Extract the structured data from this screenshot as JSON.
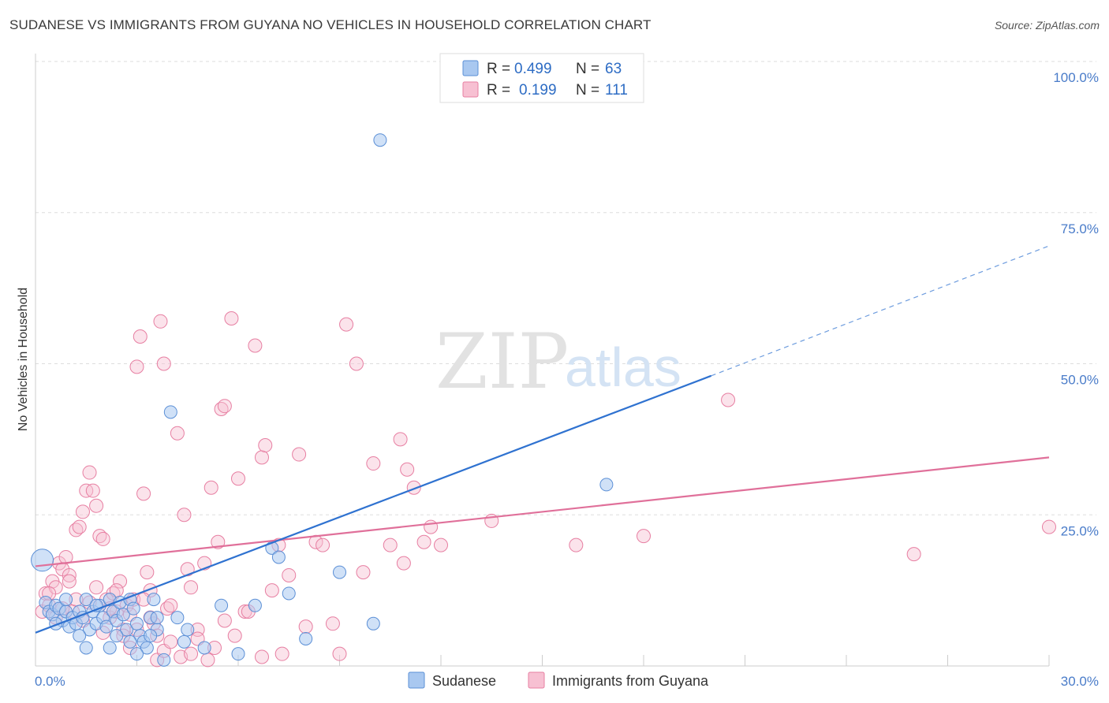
{
  "title": "SUDANESE VS IMMIGRANTS FROM GUYANA NO VEHICLES IN HOUSEHOLD CORRELATION CHART",
  "source": "Source: ZipAtlas.com",
  "watermark": {
    "zip": "ZIP",
    "atlas": "atlas"
  },
  "legend": {
    "r_label": "R =",
    "n_label": "N =",
    "rows": [
      {
        "r": "0.499",
        "n": "63"
      },
      {
        "r": "0.199",
        "n": "111"
      }
    ]
  },
  "bottom_legend": [
    "Sudanese",
    "Immigrants from Guyana"
  ],
  "colors": {
    "blue_fill": "#a9c8f0",
    "blue_stroke": "#5b8fd6",
    "blue_line": "#2f72d0",
    "pink_fill": "#f7c0d2",
    "pink_stroke": "#e77fa2",
    "pink_line": "#e0709a",
    "grid": "#dddddd",
    "axis_text": "#4a7cc9"
  },
  "chart_data": {
    "type": "scatter",
    "title": "SUDANESE VS IMMIGRANTS FROM GUYANA NO VEHICLES IN HOUSEHOLD CORRELATION CHART",
    "xlabel": "",
    "ylabel": "No Vehicles in Household",
    "xlim": [
      0,
      30
    ],
    "ylim": [
      0,
      100
    ],
    "x_tick_labels": [
      "0.0%",
      "30.0%"
    ],
    "y_ticks": [
      25,
      50,
      75,
      100
    ],
    "y_tick_labels": [
      "25.0%",
      "50.0%",
      "75.0%",
      "100.0%"
    ],
    "grid": true,
    "legend_position": "top-center",
    "series": [
      {
        "name": "Sudanese",
        "r": 0.499,
        "n": 63,
        "trend": {
          "x0": 0,
          "y0": 5.5,
          "x1": 20,
          "y1": 48,
          "dash_to_x": 30,
          "dash_to_y": 69.5
        },
        "points": [
          [
            0.2,
            17.5
          ],
          [
            0.3,
            10.5
          ],
          [
            0.4,
            9
          ],
          [
            0.5,
            8.5
          ],
          [
            0.6,
            10
          ],
          [
            0.7,
            9.5
          ],
          [
            0.8,
            7.5
          ],
          [
            0.9,
            9
          ],
          [
            1.0,
            6.5
          ],
          [
            1.1,
            8
          ],
          [
            1.2,
            7
          ],
          [
            1.3,
            9
          ],
          [
            1.4,
            8
          ],
          [
            1.5,
            11
          ],
          [
            1.6,
            6
          ],
          [
            1.7,
            9
          ],
          [
            1.8,
            7
          ],
          [
            1.9,
            10
          ],
          [
            2.0,
            8
          ],
          [
            2.1,
            6.5
          ],
          [
            2.2,
            11
          ],
          [
            2.3,
            9
          ],
          [
            2.4,
            7.5
          ],
          [
            2.5,
            10.5
          ],
          [
            2.6,
            8.5
          ],
          [
            2.7,
            6
          ],
          [
            2.8,
            11
          ],
          [
            2.9,
            9.5
          ],
          [
            3.0,
            7
          ],
          [
            3.1,
            5
          ],
          [
            3.2,
            4
          ],
          [
            3.3,
            3
          ],
          [
            3.4,
            8
          ],
          [
            3.5,
            11
          ],
          [
            3.6,
            6
          ],
          [
            3.8,
            1
          ],
          [
            4.0,
            42
          ],
          [
            4.2,
            8
          ],
          [
            4.5,
            6
          ],
          [
            5.0,
            3
          ],
          [
            5.5,
            10
          ],
          [
            6.0,
            2
          ],
          [
            6.5,
            10
          ],
          [
            7.0,
            19.5
          ],
          [
            7.2,
            18
          ],
          [
            7.5,
            12
          ],
          [
            8.0,
            4.5
          ],
          [
            9.0,
            15.5
          ],
          [
            10.0,
            7
          ],
          [
            10.2,
            87
          ],
          [
            16.9,
            30
          ],
          [
            1.5,
            3
          ],
          [
            2.2,
            3
          ],
          [
            2.8,
            4
          ],
          [
            3.4,
            5
          ],
          [
            0.9,
            11
          ],
          [
            1.3,
            5
          ],
          [
            1.8,
            10
          ],
          [
            2.4,
            5
          ],
          [
            3.0,
            2
          ],
          [
            3.6,
            8
          ],
          [
            4.4,
            4
          ],
          [
            0.6,
            7
          ]
        ]
      },
      {
        "name": "Immigrants from Guyana",
        "r": 0.199,
        "n": 111,
        "trend": {
          "x0": 0,
          "y0": 16.5,
          "x1": 30,
          "y1": 34.5
        },
        "points": [
          [
            0.2,
            9
          ],
          [
            0.3,
            12
          ],
          [
            0.4,
            10
          ],
          [
            0.5,
            14
          ],
          [
            0.6,
            13
          ],
          [
            0.7,
            17
          ],
          [
            0.8,
            16
          ],
          [
            0.9,
            18
          ],
          [
            1.0,
            15
          ],
          [
            1.1,
            9
          ],
          [
            1.2,
            22.5
          ],
          [
            1.3,
            23
          ],
          [
            1.4,
            25.5
          ],
          [
            1.5,
            29
          ],
          [
            1.6,
            32
          ],
          [
            1.7,
            29
          ],
          [
            1.8,
            26.5
          ],
          [
            1.9,
            21.5
          ],
          [
            2.0,
            21
          ],
          [
            2.1,
            11
          ],
          [
            2.2,
            8
          ],
          [
            2.3,
            12
          ],
          [
            2.4,
            9
          ],
          [
            2.5,
            14
          ],
          [
            2.6,
            6
          ],
          [
            2.7,
            10
          ],
          [
            2.8,
            8.5
          ],
          [
            2.9,
            11
          ],
          [
            3.0,
            49.5
          ],
          [
            3.1,
            54.5
          ],
          [
            3.2,
            28.5
          ],
          [
            3.3,
            15.5
          ],
          [
            3.4,
            12.5
          ],
          [
            3.5,
            7
          ],
          [
            3.6,
            5
          ],
          [
            3.7,
            57
          ],
          [
            3.8,
            50
          ],
          [
            3.9,
            9.5
          ],
          [
            4.0,
            10
          ],
          [
            4.2,
            38.5
          ],
          [
            4.4,
            25
          ],
          [
            4.5,
            16
          ],
          [
            4.6,
            13
          ],
          [
            4.8,
            6
          ],
          [
            5.0,
            17
          ],
          [
            5.2,
            29.5
          ],
          [
            5.4,
            20.5
          ],
          [
            5.5,
            42.5
          ],
          [
            5.6,
            43
          ],
          [
            5.8,
            57.5
          ],
          [
            6.0,
            31
          ],
          [
            6.2,
            9
          ],
          [
            6.5,
            53
          ],
          [
            6.7,
            34.5
          ],
          [
            6.8,
            36.5
          ],
          [
            7.0,
            12.5
          ],
          [
            7.2,
            20
          ],
          [
            7.5,
            15
          ],
          [
            7.8,
            35
          ],
          [
            8.0,
            6.5
          ],
          [
            8.3,
            20.5
          ],
          [
            8.5,
            20
          ],
          [
            8.8,
            7
          ],
          [
            9.0,
            2
          ],
          [
            9.2,
            56.5
          ],
          [
            9.5,
            50
          ],
          [
            9.7,
            15.5
          ],
          [
            10.0,
            33.5
          ],
          [
            10.5,
            20
          ],
          [
            10.8,
            37.5
          ],
          [
            11.0,
            32.5
          ],
          [
            11.2,
            29.5
          ],
          [
            11.5,
            20.5
          ],
          [
            11.7,
            23
          ],
          [
            12.0,
            20
          ],
          [
            13.5,
            24
          ],
          [
            16.0,
            20
          ],
          [
            18.0,
            21.5
          ],
          [
            20.5,
            44
          ],
          [
            26.0,
            18.5
          ],
          [
            30.0,
            23
          ],
          [
            0.4,
            12
          ],
          [
            0.6,
            8
          ],
          [
            0.8,
            9.5
          ],
          [
            1.0,
            14
          ],
          [
            1.2,
            11
          ],
          [
            1.4,
            7.5
          ],
          [
            1.6,
            10.5
          ],
          [
            1.8,
            13
          ],
          [
            2.0,
            5.5
          ],
          [
            2.2,
            9.5
          ],
          [
            2.4,
            12.5
          ],
          [
            2.6,
            5
          ],
          [
            2.8,
            3
          ],
          [
            3.0,
            6
          ],
          [
            3.2,
            11
          ],
          [
            3.4,
            8
          ],
          [
            3.6,
            1
          ],
          [
            3.8,
            2.5
          ],
          [
            4.0,
            4
          ],
          [
            4.3,
            1.5
          ],
          [
            4.6,
            2
          ],
          [
            4.8,
            4.5
          ],
          [
            5.1,
            1
          ],
          [
            5.3,
            3
          ],
          [
            5.6,
            7.5
          ],
          [
            5.9,
            5
          ],
          [
            6.3,
            9
          ],
          [
            6.7,
            1.5
          ],
          [
            7.3,
            2
          ],
          [
            10.9,
            17
          ]
        ]
      }
    ]
  }
}
